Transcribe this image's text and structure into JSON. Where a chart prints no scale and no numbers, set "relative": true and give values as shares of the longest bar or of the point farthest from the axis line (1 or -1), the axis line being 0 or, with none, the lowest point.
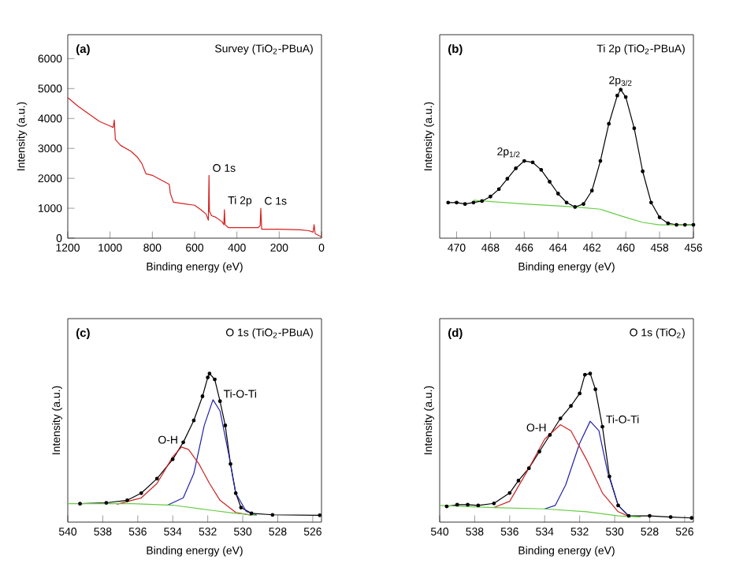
{
  "chart_data": [
    {
      "type": "line",
      "title": "Survey (TiO$_{2}$-PBuA)",
      "xlabel": "Binding energy (eV)",
      "ylabel": "Intensity (a.u.)",
      "xlim": [
        1200,
        0
      ],
      "ylim": [
        0,
        6800
      ],
      "xticks": [
        1200,
        1000,
        800,
        600,
        400,
        200,
        0
      ],
      "yticks": [
        0,
        1000,
        2000,
        3000,
        4000,
        5000,
        6000
      ],
      "annotations": [
        "(a)",
        {
          "text": "O 1s",
          "x": 532,
          "y": 2100
        },
        {
          "text": "Ti 2p",
          "x": 459,
          "y": 950
        },
        {
          "text": "C 1s",
          "x": 287,
          "y": 1000
        }
      ],
      "series": [
        {
          "color": "#d62020",
          "x": [
            1200,
            1150,
            1100,
            1050,
            1000,
            985,
            980,
            975,
            950,
            900,
            870,
            850,
            830,
            800,
            760,
            720,
            715,
            700,
            650,
            600,
            570,
            545,
            535,
            532,
            530,
            520,
            500,
            470,
            462,
            459,
            456,
            440,
            400,
            300,
            290,
            287,
            283,
            250,
            200,
            100,
            60,
            40,
            35,
            30,
            10,
            0
          ],
          "values": [
            4700,
            4400,
            4150,
            3900,
            3750,
            3700,
            3950,
            3300,
            3100,
            2900,
            2700,
            2500,
            2150,
            2100,
            1950,
            1800,
            1500,
            1200,
            1150,
            1100,
            950,
            800,
            600,
            2100,
            900,
            750,
            700,
            550,
            450,
            950,
            450,
            350,
            350,
            350,
            420,
            1000,
            300,
            300,
            300,
            280,
            250,
            200,
            450,
            150,
            80,
            50
          ]
        }
      ]
    },
    {
      "type": "line",
      "relative": true,
      "title": "Ti 2p (TiO$_{2}$-PBuA)",
      "xlabel": "Binding energy (eV)",
      "ylabel": "Intensity (a.u.)",
      "xlim": [
        471,
        456
      ],
      "xticks": [
        470,
        468,
        466,
        464,
        462,
        460,
        458,
        456
      ],
      "annotations": [
        "(b)",
        {
          "text": "2p$_{1/2}$",
          "x": 466,
          "y": 0.52
        },
        {
          "text": "2p$_{3/2}$",
          "x": 460.3,
          "y": 1.0
        }
      ],
      "series": [
        {
          "color": "#000000",
          "marker": "circle",
          "x": [
            470.5,
            470,
            469.5,
            469,
            468.5,
            468,
            467.5,
            467,
            466.5,
            466,
            465.5,
            465,
            464.5,
            464,
            463.5,
            463,
            462.5,
            462,
            461.5,
            461,
            460.5,
            460.3,
            460,
            459.5,
            459,
            458.5,
            458,
            457.5,
            457,
            456.5,
            456
          ],
          "values": [
            0.24,
            0.24,
            0.23,
            0.24,
            0.25,
            0.28,
            0.33,
            0.4,
            0.47,
            0.52,
            0.51,
            0.46,
            0.38,
            0.3,
            0.24,
            0.21,
            0.23,
            0.32,
            0.52,
            0.77,
            0.96,
            1.0,
            0.95,
            0.74,
            0.45,
            0.24,
            0.14,
            0.1,
            0.09,
            0.09,
            0.09
          ]
        },
        {
          "color": "#66cc44",
          "x": [
            469,
            466,
            463,
            461.5,
            460,
            459,
            458,
            456
          ],
          "values": [
            0.255,
            0.23,
            0.21,
            0.195,
            0.14,
            0.106,
            0.09,
            0.09
          ]
        }
      ]
    },
    {
      "type": "line",
      "relative": true,
      "title": "O 1s (TiO$_{2}$-PBuA)",
      "xlabel": "Binding energy (eV)",
      "ylabel": "Intensity (a.u.)",
      "xlim": [
        540,
        525.5
      ],
      "xticks": [
        540,
        538,
        536,
        534,
        532,
        530,
        528,
        526
      ],
      "annotations": [
        "(c)",
        {
          "text": "O-H",
          "x": 533.5,
          "y": 0.505
        },
        {
          "text": "Ti-O-Ti",
          "x": 531.3,
          "y": 0.814
        }
      ],
      "series": [
        {
          "color": "#000000",
          "marker": "circle",
          "x": [
            539.3,
            537.8,
            536.6,
            535.8,
            534.9,
            534.0,
            533.4,
            532.8,
            532.3,
            532.0,
            531.9,
            531.6,
            531.3,
            531.0,
            530.7,
            530.4,
            530.1,
            529.5,
            528.3,
            525.6
          ],
          "values": [
            0.124,
            0.13,
            0.147,
            0.195,
            0.293,
            0.423,
            0.537,
            0.684,
            0.847,
            0.974,
            1.0,
            0.961,
            0.814,
            0.651,
            0.391,
            0.195,
            0.098,
            0.059,
            0.049,
            0.046
          ]
        },
        {
          "color": "#2222aa",
          "x": [
            534.3,
            533.4,
            532.8,
            532.2,
            531.7,
            531.3,
            530.8,
            530.4,
            529.8,
            529.2
          ],
          "values": [
            0.114,
            0.163,
            0.326,
            0.651,
            0.824,
            0.749,
            0.456,
            0.195,
            0.072,
            0.046
          ]
        },
        {
          "color": "#cc2222",
          "x": [
            537.2,
            535.8,
            534.9,
            534.0,
            533.5,
            533.1,
            532.5,
            531.9,
            531.3,
            530.4,
            529.5
          ],
          "values": [
            0.12,
            0.163,
            0.26,
            0.44,
            0.505,
            0.489,
            0.391,
            0.26,
            0.147,
            0.065,
            0.046
          ]
        },
        {
          "color": "#66cc44",
          "x": [
            540,
            536.3,
            534.0,
            531.9,
            530.4,
            529.2
          ],
          "values": [
            0.124,
            0.124,
            0.114,
            0.081,
            0.059,
            0.046
          ]
        }
      ]
    },
    {
      "type": "line",
      "relative": true,
      "title": "O 1s (TiO$_{2}$)",
      "xlabel": "Binding energy (eV)",
      "ylabel": "Intensity (a.u.)",
      "xlim": [
        540,
        525.5
      ],
      "xticks": [
        540,
        538,
        536,
        534,
        532,
        530,
        528,
        526
      ],
      "annotations": [
        "(d)",
        {
          "text": "O-H",
          "x": 533.7,
          "y": 0.587
        },
        {
          "text": "Ti-O-Ti",
          "x": 530.7,
          "y": 0.642
        }
      ],
      "series": [
        {
          "color": "#000000",
          "marker": "circle",
          "x": [
            539.6,
            539.0,
            538.4,
            537.8,
            536.9,
            536.0,
            535.5,
            534.9,
            534.3,
            533.7,
            533.1,
            532.5,
            532.0,
            531.7,
            531.4,
            531.1,
            530.7,
            530.3,
            529.8,
            529.2,
            528.0,
            526.8,
            525.6
          ],
          "values": [
            0.106,
            0.117,
            0.117,
            0.112,
            0.126,
            0.196,
            0.279,
            0.363,
            0.475,
            0.587,
            0.698,
            0.782,
            0.866,
            0.992,
            1.0,
            0.894,
            0.642,
            0.307,
            0.112,
            0.042,
            0.042,
            0.034,
            0.028
          ]
        },
        {
          "color": "#2222aa",
          "x": [
            534.0,
            533.4,
            532.8,
            532.0,
            531.4,
            530.9,
            530.4,
            529.8,
            529.2
          ],
          "values": [
            0.089,
            0.112,
            0.251,
            0.531,
            0.679,
            0.615,
            0.335,
            0.112,
            0.042
          ]
        },
        {
          "color": "#cc2222",
          "x": [
            536.9,
            536.0,
            534.9,
            534.0,
            533.1,
            532.5,
            531.6,
            530.7,
            529.8,
            529.1
          ],
          "values": [
            0.098,
            0.14,
            0.363,
            0.559,
            0.656,
            0.615,
            0.419,
            0.196,
            0.07,
            0.034
          ]
        },
        {
          "color": "#66cc44",
          "x": [
            540,
            536.9,
            534.0,
            531.6,
            529.8,
            528.5
          ],
          "values": [
            0.112,
            0.098,
            0.089,
            0.07,
            0.042,
            0.034
          ]
        }
      ]
    }
  ]
}
